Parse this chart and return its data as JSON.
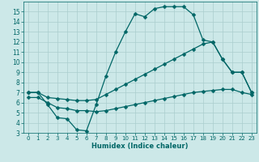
{
  "xlabel": "Humidex (Indice chaleur)",
  "xlim": [
    -0.5,
    23.5
  ],
  "ylim": [
    3,
    16
  ],
  "yticks": [
    3,
    4,
    5,
    6,
    7,
    8,
    9,
    10,
    11,
    12,
    13,
    14,
    15
  ],
  "xticks": [
    0,
    1,
    2,
    3,
    4,
    5,
    6,
    7,
    8,
    9,
    10,
    11,
    12,
    13,
    14,
    15,
    16,
    17,
    18,
    19,
    20,
    21,
    22,
    23
  ],
  "bg_color": "#cce8e8",
  "grid_color": "#aacece",
  "line_color": "#006666",
  "line1_x": [
    0,
    1,
    2,
    3,
    4,
    5,
    6,
    7,
    8,
    9,
    10,
    11,
    12,
    13,
    14,
    15,
    16,
    17,
    18,
    19,
    20,
    21,
    22,
    23
  ],
  "line1_y": [
    7.0,
    7.0,
    5.8,
    4.5,
    4.4,
    3.3,
    3.2,
    5.8,
    8.6,
    11.0,
    13.0,
    14.8,
    14.5,
    15.3,
    15.5,
    15.5,
    15.5,
    14.7,
    12.2,
    12.0,
    10.3,
    9.0,
    9.0,
    7.0
  ],
  "line2_x": [
    0,
    1,
    2,
    3,
    4,
    5,
    6,
    7,
    8,
    9,
    10,
    11,
    12,
    13,
    14,
    15,
    16,
    17,
    18,
    19,
    20,
    21,
    22,
    23
  ],
  "line2_y": [
    7.0,
    7.0,
    6.5,
    6.4,
    6.3,
    6.2,
    6.2,
    6.3,
    6.8,
    7.3,
    7.8,
    8.3,
    8.8,
    9.3,
    9.8,
    10.3,
    10.8,
    11.3,
    11.8,
    12.0,
    10.3,
    9.0,
    9.0,
    7.0
  ],
  "line3_x": [
    0,
    1,
    2,
    3,
    4,
    5,
    6,
    7,
    8,
    9,
    10,
    11,
    12,
    13,
    14,
    15,
    16,
    17,
    18,
    19,
    20,
    21,
    22,
    23
  ],
  "line3_y": [
    6.5,
    6.5,
    6.0,
    5.5,
    5.4,
    5.2,
    5.2,
    5.1,
    5.2,
    5.4,
    5.6,
    5.8,
    6.0,
    6.2,
    6.4,
    6.6,
    6.8,
    7.0,
    7.1,
    7.2,
    7.3,
    7.3,
    7.0,
    6.8
  ]
}
